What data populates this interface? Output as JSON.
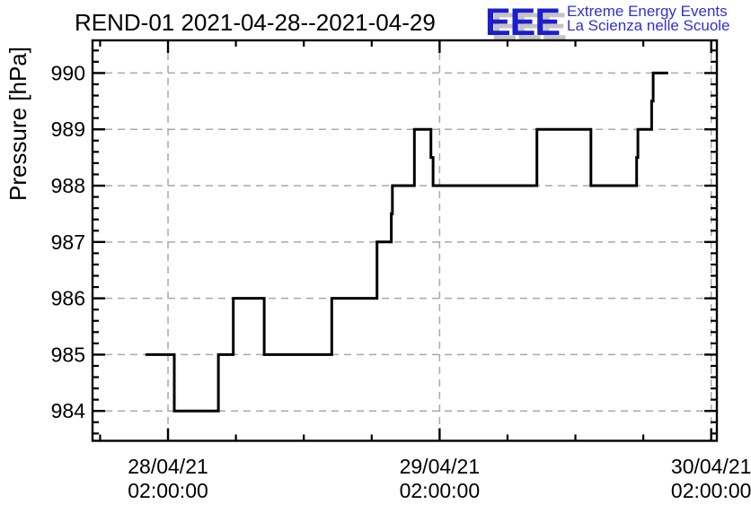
{
  "header": {
    "title": "REND-01 2021-04-28--2021-04-29"
  },
  "logo": {
    "acronym": "EEE",
    "line1": "Extreme Energy Events",
    "line2": "La Scienza nelle Scuole",
    "text_color": "#3030cf",
    "acronym_color": "#1d1dcc",
    "shadow_color": "#c3c3c3"
  },
  "chart_data": {
    "type": "line",
    "subtype": "step",
    "title": "REND-01 2021-04-28--2021-04-29",
    "xlabel": "",
    "ylabel": "Pressure [hPa]",
    "x_unit": "hours since 2021-04-28 00:00:00",
    "xlim": [
      -4.67,
      50.5
    ],
    "ylim": [
      983.47,
      990.58
    ],
    "grid": true,
    "legend_position": "none",
    "line_color": "#000000",
    "grid_color": "#a9a9a9",
    "x_major_ticks": [
      {
        "t": 2,
        "label_line1": "28/04/21",
        "label_line2": "02:00:00"
      },
      {
        "t": 26,
        "label_line1": "29/04/21",
        "label_line2": "02:00:00"
      },
      {
        "t": 50,
        "label_line1": "30/04/21",
        "label_line2": "02:00:00"
      }
    ],
    "x_minor_step_hours": 6,
    "y_major_ticks": [
      984,
      985,
      986,
      987,
      988,
      989,
      990
    ],
    "y_minor_step": 0.2,
    "series": [
      {
        "name": "pressure",
        "points": [
          [
            0.0,
            985
          ],
          [
            2.55,
            984
          ],
          [
            6.45,
            985
          ],
          [
            7.77,
            986
          ],
          [
            10.5,
            985
          ],
          [
            16.47,
            986
          ],
          [
            20.47,
            987
          ],
          [
            21.73,
            987.5
          ],
          [
            21.83,
            988
          ],
          [
            23.77,
            989
          ],
          [
            25.23,
            988.5
          ],
          [
            25.42,
            988
          ],
          [
            34.6,
            989
          ],
          [
            39.37,
            988
          ],
          [
            43.41,
            988.5
          ],
          [
            43.52,
            989
          ],
          [
            44.74,
            989.5
          ],
          [
            44.87,
            990
          ],
          [
            46.2,
            990
          ]
        ]
      }
    ]
  }
}
